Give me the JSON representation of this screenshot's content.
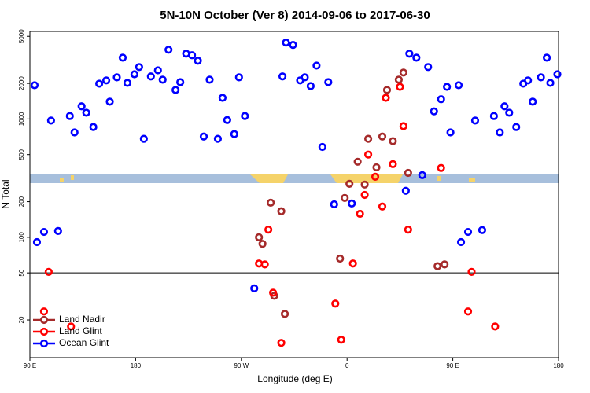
{
  "chart_data": {
    "type": "scatter",
    "title": "5N-10N October (Ver 8)   2014-09-06 to 2017-06-30",
    "x_label": "Longitude (deg E)",
    "y_label": "N Total",
    "log_y": true,
    "legend": "lower left",
    "xlim": [
      90,
      540
    ],
    "xticks": [
      {
        "value": 90,
        "label": "90 E"
      },
      {
        "value": 180,
        "label": "180"
      },
      {
        "value": 270,
        "label": "90 W"
      },
      {
        "value": 360,
        "label": "0"
      },
      {
        "value": 450,
        "label": "90 E"
      },
      {
        "value": 540,
        "label": "180"
      }
    ],
    "ylim": [
      9.6,
      5500
    ],
    "yticks": [
      20,
      50,
      100,
      200,
      500,
      1000,
      2000,
      5000
    ],
    "hline": 50,
    "series": [
      {
        "name": "Land Nadir",
        "color": "#a52a2a",
        "x": [
          369,
          362,
          358,
          375,
          378,
          385,
          390,
          394,
          399,
          404,
          408,
          412,
          295,
          304,
          285,
          288,
          298,
          307,
          354,
          437,
          443
        ],
        "values": [
          435,
          283,
          215,
          279,
          680,
          390,
          710,
          1760,
          650,
          2150,
          2470,
          350,
          196,
          166,
          100,
          88,
          32,
          22.5,
          66,
          57,
          59
        ]
      },
      {
        "name": "Land Glint",
        "color": "#ff0000",
        "x": [
          102,
          125,
          106,
          285,
          290,
          293,
          297,
          304,
          350,
          355,
          365,
          371,
          375,
          378,
          384,
          390,
          393,
          399,
          405,
          408,
          412,
          440,
          463,
          466,
          486
        ],
        "values": [
          23.6,
          17.6,
          51,
          60,
          59,
          116,
          34,
          12.8,
          27.5,
          13.6,
          60,
          158,
          228,
          500,
          325,
          182,
          1510,
          415,
          1870,
          870,
          116,
          385,
          23.6,
          51,
          17.6
        ]
      },
      {
        "name": "Ocean Glint",
        "color": "#0000ff",
        "x": [
          94,
          108,
          124,
          128,
          134,
          138,
          144,
          149,
          155,
          158,
          164,
          169,
          173,
          179,
          183,
          187,
          193,
          199,
          203,
          208,
          214,
          218,
          223,
          228,
          233,
          238,
          243,
          250,
          254,
          258,
          264,
          268,
          273,
          308,
          314,
          305,
          320,
          324,
          329,
          334,
          339,
          344,
          413,
          419,
          429,
          434,
          440,
          445,
          448,
          455,
          469,
          485,
          490,
          494,
          498,
          504,
          510,
          514,
          518,
          525,
          530,
          533,
          539,
          96,
          102,
          114,
          281,
          349,
          364,
          410,
          424,
          457,
          463,
          475
        ],
        "values": [
          1930,
          970,
          1060,
          770,
          1280,
          1130,
          855,
          1990,
          2120,
          1400,
          2250,
          3300,
          2020,
          2390,
          2750,
          680,
          2290,
          2580,
          2150,
          3850,
          1760,
          2050,
          3570,
          3460,
          3110,
          710,
          2150,
          680,
          1510,
          980,
          745,
          2250,
          1060,
          4430,
          4230,
          2290,
          2120,
          2250,
          1900,
          2830,
          580,
          2050,
          3570,
          3300,
          2750,
          1160,
          1470,
          1870,
          770,
          1930,
          970,
          1060,
          770,
          1280,
          1130,
          855,
          1990,
          2120,
          1400,
          2250,
          3300,
          2020,
          2390,
          91,
          111,
          113,
          37,
          190,
          193,
          247,
          335,
          91,
          111,
          115
        ]
      }
    ]
  }
}
